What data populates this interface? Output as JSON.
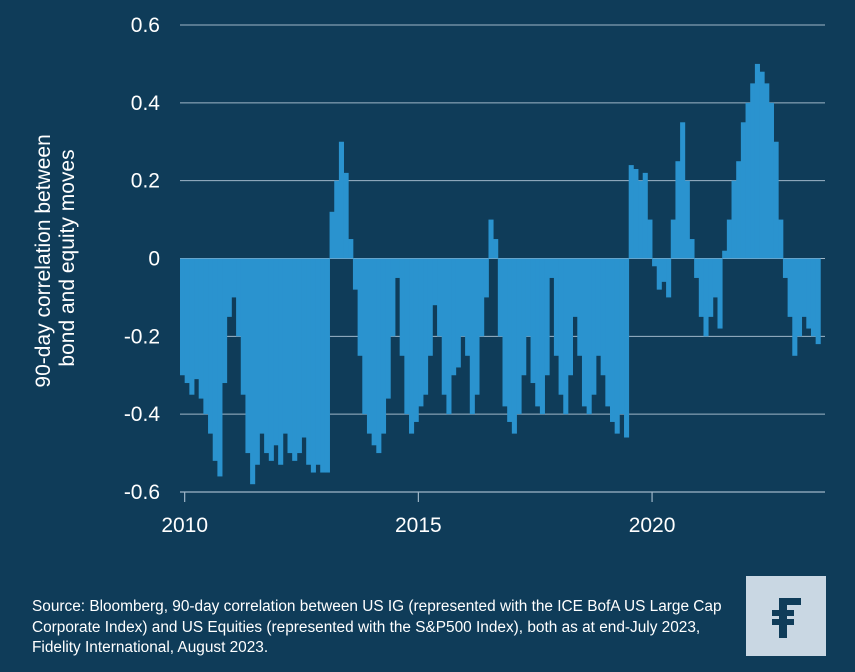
{
  "chart_data": {
    "type": "area",
    "title": "",
    "ylabel": "90-day correlation between bond and equity moves",
    "xlabel": "",
    "ylim": [
      -0.6,
      0.6
    ],
    "xlim": [
      2009.9,
      2023.7
    ],
    "y_ticks": [
      "0.6",
      "0.4",
      "0.2",
      "0",
      "-0.2",
      "-0.4",
      "-0.6"
    ],
    "x_ticks": [
      "2010",
      "2015",
      "2020"
    ],
    "grid": true,
    "series": [
      {
        "color": "#2a93cf",
        "x": [
          2009.9,
          2010.0,
          2010.1,
          2010.2,
          2010.3,
          2010.4,
          2010.5,
          2010.6,
          2010.7,
          2010.8,
          2010.9,
          2011.0,
          2011.1,
          2011.2,
          2011.3,
          2011.4,
          2011.5,
          2011.6,
          2011.7,
          2011.8,
          2011.9,
          2012.0,
          2012.1,
          2012.2,
          2012.3,
          2012.4,
          2012.5,
          2012.6,
          2012.7,
          2012.8,
          2012.9,
          2013.0,
          2013.1,
          2013.2,
          2013.3,
          2013.4,
          2013.5,
          2013.6,
          2013.7,
          2013.8,
          2013.9,
          2014.0,
          2014.1,
          2014.2,
          2014.3,
          2014.4,
          2014.5,
          2014.6,
          2014.7,
          2014.8,
          2014.9,
          2015.0,
          2015.1,
          2015.2,
          2015.3,
          2015.4,
          2015.5,
          2015.6,
          2015.7,
          2015.8,
          2015.9,
          2016.0,
          2016.1,
          2016.2,
          2016.3,
          2016.4,
          2016.5,
          2016.6,
          2016.7,
          2016.8,
          2016.9,
          2017.0,
          2017.1,
          2017.2,
          2017.3,
          2017.4,
          2017.5,
          2017.6,
          2017.7,
          2017.8,
          2017.9,
          2018.0,
          2018.1,
          2018.2,
          2018.3,
          2018.4,
          2018.5,
          2018.6,
          2018.7,
          2018.8,
          2018.9,
          2019.0,
          2019.1,
          2019.2,
          2019.3,
          2019.4,
          2019.5,
          2019.6,
          2019.7,
          2019.8,
          2019.9,
          2020.0,
          2020.1,
          2020.2,
          2020.3,
          2020.4,
          2020.5,
          2020.6,
          2020.7,
          2020.8,
          2020.9,
          2021.0,
          2021.1,
          2021.2,
          2021.3,
          2021.4,
          2021.5,
          2021.6,
          2021.7,
          2021.8,
          2021.9,
          2022.0,
          2022.1,
          2022.2,
          2022.3,
          2022.4,
          2022.5,
          2022.6,
          2022.7,
          2022.8,
          2022.9,
          2023.0,
          2023.1,
          2023.2,
          2023.3,
          2023.4,
          2023.5
        ],
        "values": [
          -0.3,
          -0.32,
          -0.35,
          -0.31,
          -0.36,
          -0.4,
          -0.45,
          -0.52,
          -0.56,
          -0.32,
          -0.15,
          -0.1,
          -0.2,
          -0.35,
          -0.5,
          -0.58,
          -0.53,
          -0.45,
          -0.5,
          -0.52,
          -0.48,
          -0.53,
          -0.45,
          -0.5,
          -0.52,
          -0.5,
          -0.46,
          -0.53,
          -0.55,
          -0.53,
          -0.55,
          -0.55,
          0.12,
          0.2,
          0.3,
          0.22,
          0.05,
          -0.08,
          -0.25,
          -0.4,
          -0.45,
          -0.48,
          -0.5,
          -0.45,
          -0.36,
          -0.2,
          -0.05,
          -0.25,
          -0.4,
          -0.45,
          -0.42,
          -0.38,
          -0.35,
          -0.25,
          -0.12,
          -0.2,
          -0.35,
          -0.4,
          -0.3,
          -0.28,
          -0.2,
          -0.25,
          -0.4,
          -0.35,
          -0.2,
          -0.1,
          0.1,
          0.05,
          -0.2,
          -0.38,
          -0.42,
          -0.45,
          -0.4,
          -0.3,
          -0.2,
          -0.32,
          -0.38,
          -0.4,
          -0.3,
          -0.05,
          -0.25,
          -0.35,
          -0.4,
          -0.3,
          -0.15,
          -0.25,
          -0.38,
          -0.4,
          -0.35,
          -0.25,
          -0.3,
          -0.38,
          -0.42,
          -0.45,
          -0.4,
          -0.46,
          0.24,
          0.23,
          0.2,
          0.22,
          0.1,
          -0.02,
          -0.08,
          -0.06,
          -0.1,
          0.1,
          0.25,
          0.35,
          0.2,
          0.05,
          -0.05,
          -0.15,
          -0.2,
          -0.15,
          -0.1,
          -0.18,
          0.02,
          0.1,
          0.2,
          0.25,
          0.35,
          0.4,
          0.45,
          0.5,
          0.48,
          0.45,
          0.4,
          0.3,
          0.1,
          -0.05,
          -0.15,
          -0.25,
          -0.2,
          -0.15,
          -0.18,
          -0.2,
          -0.22
        ]
      }
    ]
  },
  "source": "Source: Bloomberg, 90-day correlation between US IG (represented with the ICE BofA US Large Cap Corporate Index) and US Equities (represented with the S&P500 Index), both as at end-July 2023, Fidelity International, August 2023.",
  "logo": {
    "icon": "fidelity-logo-icon",
    "background": "#c9d7e3",
    "glyph_color": "#0f3c59"
  },
  "colors": {
    "background": "#0f3c59",
    "series": "#2a93cf",
    "grid": "#9fb6c8"
  }
}
